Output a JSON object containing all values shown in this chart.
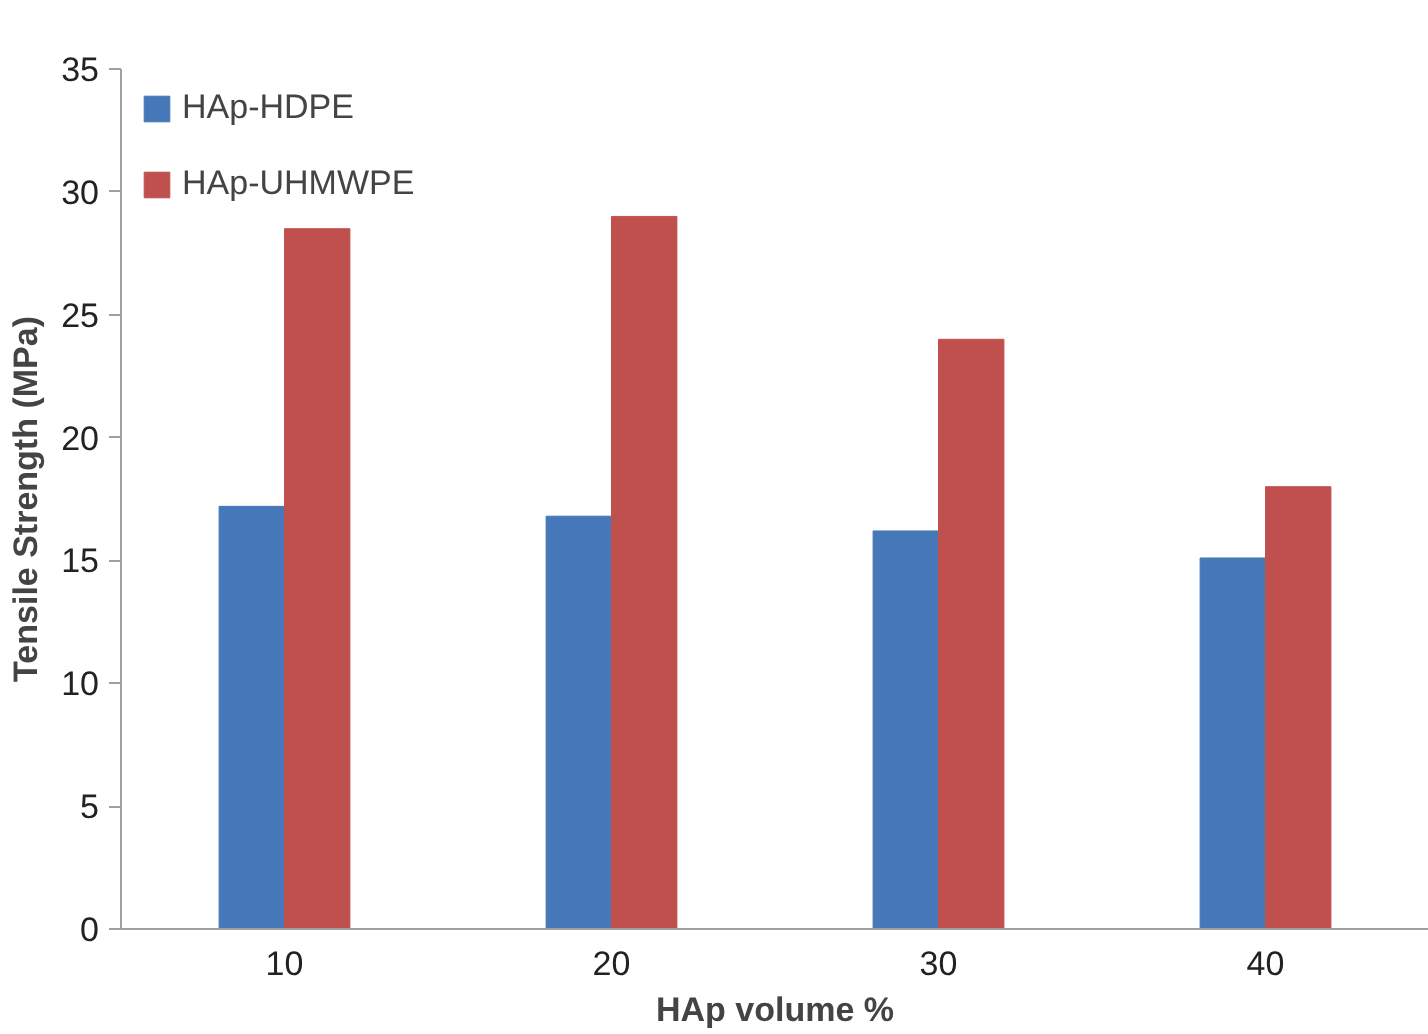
{
  "chart_data": {
    "type": "bar",
    "xlabel": "HAp volume %",
    "ylabel": "Tensile Strength (MPa)",
    "categories": [
      "10",
      "20",
      "30",
      "40"
    ],
    "series": [
      {
        "name": "HAp-HDPE",
        "color": "#4677b8",
        "values": [
          17.2,
          16.8,
          16.2,
          15.1
        ]
      },
      {
        "name": "HAp-UHMWPE",
        "color": "#c0504d",
        "values": [
          28.5,
          29.0,
          24.0,
          18.0
        ]
      }
    ],
    "ylim": [
      0,
      35
    ],
    "yticks": [
      0,
      5,
      10,
      15,
      20,
      25,
      30,
      35
    ],
    "grid": false,
    "legend": "top left"
  }
}
